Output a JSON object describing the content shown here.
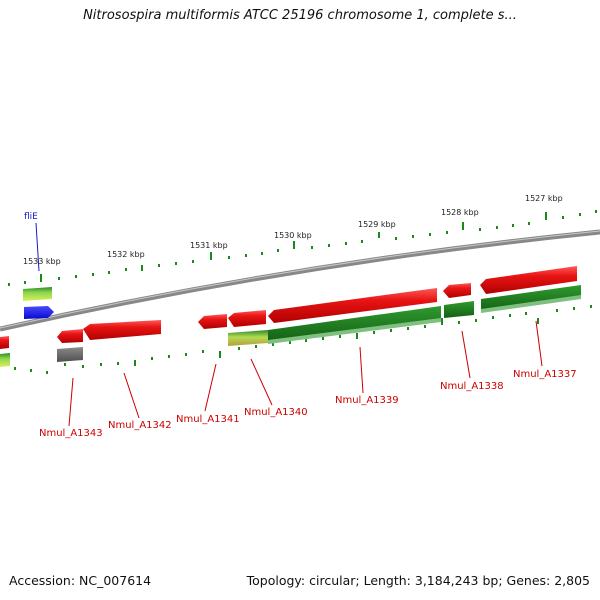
{
  "header": {
    "title": "Nitrosospira multiformis ATCC 25196 chromosome 1, complete s..."
  },
  "scale": {
    "labels": [
      "1533 kbp",
      "1532 kbp",
      "1531 kbp",
      "1530 kbp",
      "1529 kbp",
      "1528 kbp",
      "1527 kbp"
    ]
  },
  "genes": {
    "feature_label": "fliE",
    "locus_labels": [
      "Nmul_A1343",
      "Nmul_A1342",
      "Nmul_A1341",
      "Nmul_A1340",
      "Nmul_A1339",
      "Nmul_A1338",
      "Nmul_A1337"
    ]
  },
  "footer": {
    "accession": "Accession: NC_007614",
    "summary": "Topology: circular; Length: 3,184,243 bp; Genes: 2,805"
  },
  "colors": {
    "forward_gene": "#e01010",
    "reverse_cds": "#1a7a1a",
    "feature": "#1a1aff",
    "backbone": "#808080",
    "ticks": "#1a8a1a",
    "labels": "#cc0000"
  }
}
